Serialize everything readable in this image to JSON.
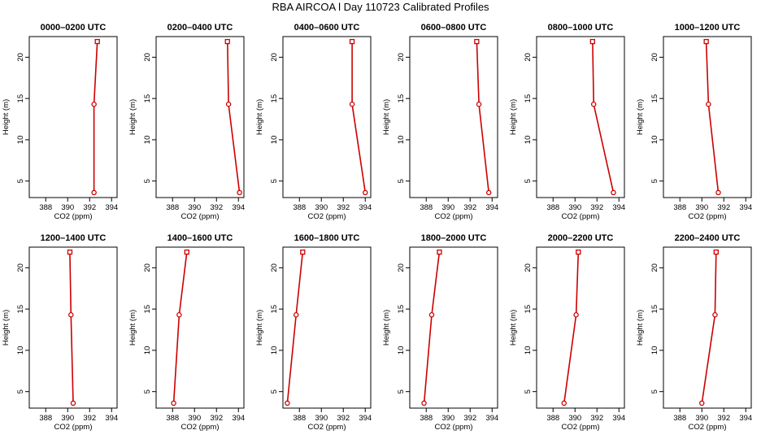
{
  "figure": {
    "title": "RBA AIRCOA l  Day 110723  Calibrated Profiles",
    "series_color": "#cc0000",
    "marker_fill": "#ffffff"
  },
  "chart_data": [
    {
      "type": "line",
      "title": "0000–0200 UTC",
      "xlabel": "CO2 (ppm)",
      "ylabel": "Height (m)",
      "xlim": [
        386.5,
        394.5
      ],
      "ylim": [
        3,
        22.5
      ],
      "x_ticks": [
        388,
        390,
        392,
        394
      ],
      "y_ticks": [
        5,
        10,
        15,
        20
      ],
      "x": [
        392.4,
        392.4,
        392.7
      ],
      "y": [
        3.6,
        14.3,
        21.9
      ]
    },
    {
      "type": "line",
      "title": "0200–0400 UTC",
      "xlabel": "CO2 (ppm)",
      "ylabel": "Height (m)",
      "xlim": [
        386.5,
        394.5
      ],
      "ylim": [
        3,
        22.5
      ],
      "x_ticks": [
        388,
        390,
        392,
        394
      ],
      "y_ticks": [
        5,
        10,
        15,
        20
      ],
      "x": [
        394.1,
        393.1,
        393.0
      ],
      "y": [
        3.6,
        14.3,
        21.9
      ]
    },
    {
      "type": "line",
      "title": "0400–0600 UTC",
      "xlabel": "CO2 (ppm)",
      "ylabel": "Height (m)",
      "xlim": [
        386.5,
        394.5
      ],
      "ylim": [
        3,
        22.5
      ],
      "x_ticks": [
        388,
        390,
        392,
        394
      ],
      "y_ticks": [
        5,
        10,
        15,
        20
      ],
      "x": [
        394.0,
        392.8,
        392.8
      ],
      "y": [
        3.6,
        14.3,
        21.9
      ]
    },
    {
      "type": "line",
      "title": "0600–0800 UTC",
      "xlabel": "CO2 (ppm)",
      "ylabel": "Height (m)",
      "xlim": [
        386.5,
        394.5
      ],
      "ylim": [
        3,
        22.5
      ],
      "x_ticks": [
        388,
        390,
        392,
        394
      ],
      "y_ticks": [
        5,
        10,
        15,
        20
      ],
      "x": [
        393.7,
        392.8,
        392.6
      ],
      "y": [
        3.6,
        14.3,
        21.9
      ]
    },
    {
      "type": "line",
      "title": "0800–1000 UTC",
      "xlabel": "CO2 (ppm)",
      "ylabel": "Height (m)",
      "xlim": [
        386.5,
        394.5
      ],
      "ylim": [
        3,
        22.5
      ],
      "x_ticks": [
        388,
        390,
        392,
        394
      ],
      "y_ticks": [
        5,
        10,
        15,
        20
      ],
      "x": [
        393.5,
        391.7,
        391.6
      ],
      "y": [
        3.6,
        14.3,
        21.9
      ]
    },
    {
      "type": "line",
      "title": "1000–1200 UTC",
      "xlabel": "CO2 (ppm)",
      "ylabel": "Height (m)",
      "xlim": [
        386.5,
        394.5
      ],
      "ylim": [
        3,
        22.5
      ],
      "x_ticks": [
        388,
        390,
        392,
        394
      ],
      "y_ticks": [
        5,
        10,
        15,
        20
      ],
      "x": [
        391.5,
        390.6,
        390.4
      ],
      "y": [
        3.6,
        14.3,
        21.9
      ]
    },
    {
      "type": "line",
      "title": "1200–1400 UTC",
      "xlabel": "CO2 (ppm)",
      "ylabel": "Height (m)",
      "xlim": [
        386.5,
        394.5
      ],
      "ylim": [
        3,
        22.5
      ],
      "x_ticks": [
        388,
        390,
        392,
        394
      ],
      "y_ticks": [
        5,
        10,
        15,
        20
      ],
      "x": [
        390.5,
        390.3,
        390.2
      ],
      "y": [
        3.6,
        14.3,
        21.9
      ]
    },
    {
      "type": "line",
      "title": "1400–1600 UTC",
      "xlabel": "CO2 (ppm)",
      "ylabel": "Height (m)",
      "xlim": [
        386.5,
        394.5
      ],
      "ylim": [
        3,
        22.5
      ],
      "x_ticks": [
        388,
        390,
        392,
        394
      ],
      "y_ticks": [
        5,
        10,
        15,
        20
      ],
      "x": [
        388.1,
        388.6,
        389.3
      ],
      "y": [
        3.6,
        14.3,
        21.9
      ]
    },
    {
      "type": "line",
      "title": "1600–1800 UTC",
      "xlabel": "CO2 (ppm)",
      "ylabel": "Height (m)",
      "xlim": [
        386.5,
        394.5
      ],
      "ylim": [
        3,
        22.5
      ],
      "x_ticks": [
        388,
        390,
        392,
        394
      ],
      "y_ticks": [
        5,
        10,
        15,
        20
      ],
      "x": [
        386.9,
        387.7,
        388.3
      ],
      "y": [
        3.6,
        14.3,
        21.9
      ]
    },
    {
      "type": "line",
      "title": "1800–2000 UTC",
      "xlabel": "CO2 (ppm)",
      "ylabel": "Height (m)",
      "xlim": [
        386.5,
        394.5
      ],
      "ylim": [
        3,
        22.5
      ],
      "x_ticks": [
        388,
        390,
        392,
        394
      ],
      "y_ticks": [
        5,
        10,
        15,
        20
      ],
      "x": [
        387.8,
        388.5,
        389.2
      ],
      "y": [
        3.6,
        14.3,
        21.9
      ]
    },
    {
      "type": "line",
      "title": "2000–2200 UTC",
      "xlabel": "CO2 (ppm)",
      "ylabel": "Height (m)",
      "xlim": [
        386.5,
        394.5
      ],
      "ylim": [
        3,
        22.5
      ],
      "x_ticks": [
        388,
        390,
        392,
        394
      ],
      "y_ticks": [
        5,
        10,
        15,
        20
      ],
      "x": [
        389.0,
        390.1,
        390.3
      ],
      "y": [
        3.6,
        14.3,
        21.9
      ]
    },
    {
      "type": "line",
      "title": "2200–2400 UTC",
      "xlabel": "CO2 (ppm)",
      "ylabel": "Height (m)",
      "xlim": [
        386.5,
        394.5
      ],
      "ylim": [
        3,
        22.5
      ],
      "x_ticks": [
        388,
        390,
        392,
        394
      ],
      "y_ticks": [
        5,
        10,
        15,
        20
      ],
      "x": [
        390.0,
        391.2,
        391.3
      ],
      "y": [
        3.6,
        14.3,
        21.9
      ]
    }
  ]
}
